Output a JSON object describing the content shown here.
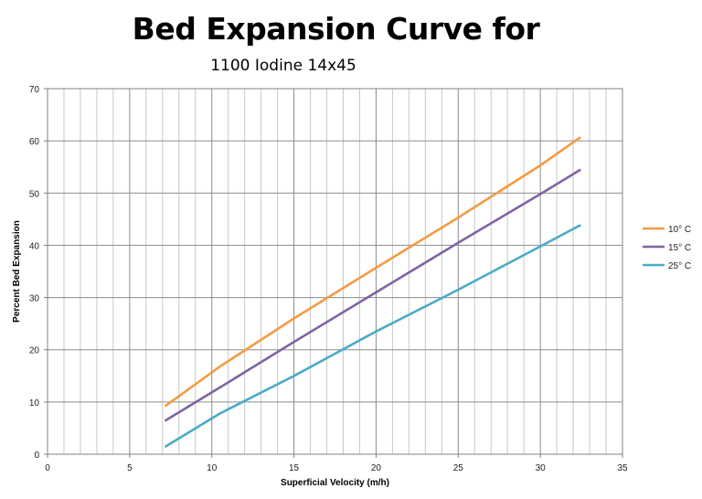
{
  "chart_data": {
    "type": "line",
    "title": "Bed Expansion Curve for",
    "subtitle": "1100 Iodine 14x45",
    "xlabel": "Superficial Velocity (m/h)",
    "ylabel": "Percent Bed Expansion",
    "xlim": [
      0,
      35
    ],
    "ylim": [
      0,
      70
    ],
    "xticks": [
      0,
      5,
      10,
      15,
      20,
      25,
      30,
      35
    ],
    "yticks": [
      0,
      10,
      20,
      30,
      40,
      50,
      60,
      70
    ],
    "minor_x_step": 1,
    "major_y_step": 10,
    "grid": true,
    "legend_position": "right",
    "series": [
      {
        "name": "10° C",
        "color": "#f59b42",
        "x": [
          7.2,
          10.5,
          15,
          20,
          25,
          30,
          32.4
        ],
        "y": [
          9.3,
          16.8,
          26,
          35.7,
          45.3,
          55.3,
          60.6
        ]
      },
      {
        "name": "15° C",
        "color": "#8064a2",
        "x": [
          7.2,
          10.5,
          15,
          20,
          25,
          30,
          32.4
        ],
        "y": [
          6.5,
          12.8,
          21.5,
          31,
          40.5,
          49.8,
          54.4
        ]
      },
      {
        "name": "25° C",
        "color": "#4bacc6",
        "x": [
          7.2,
          10.5,
          15,
          20,
          25,
          30,
          32.4
        ],
        "y": [
          1.5,
          7.8,
          15,
          23.5,
          31.5,
          39.8,
          43.8
        ]
      }
    ]
  }
}
